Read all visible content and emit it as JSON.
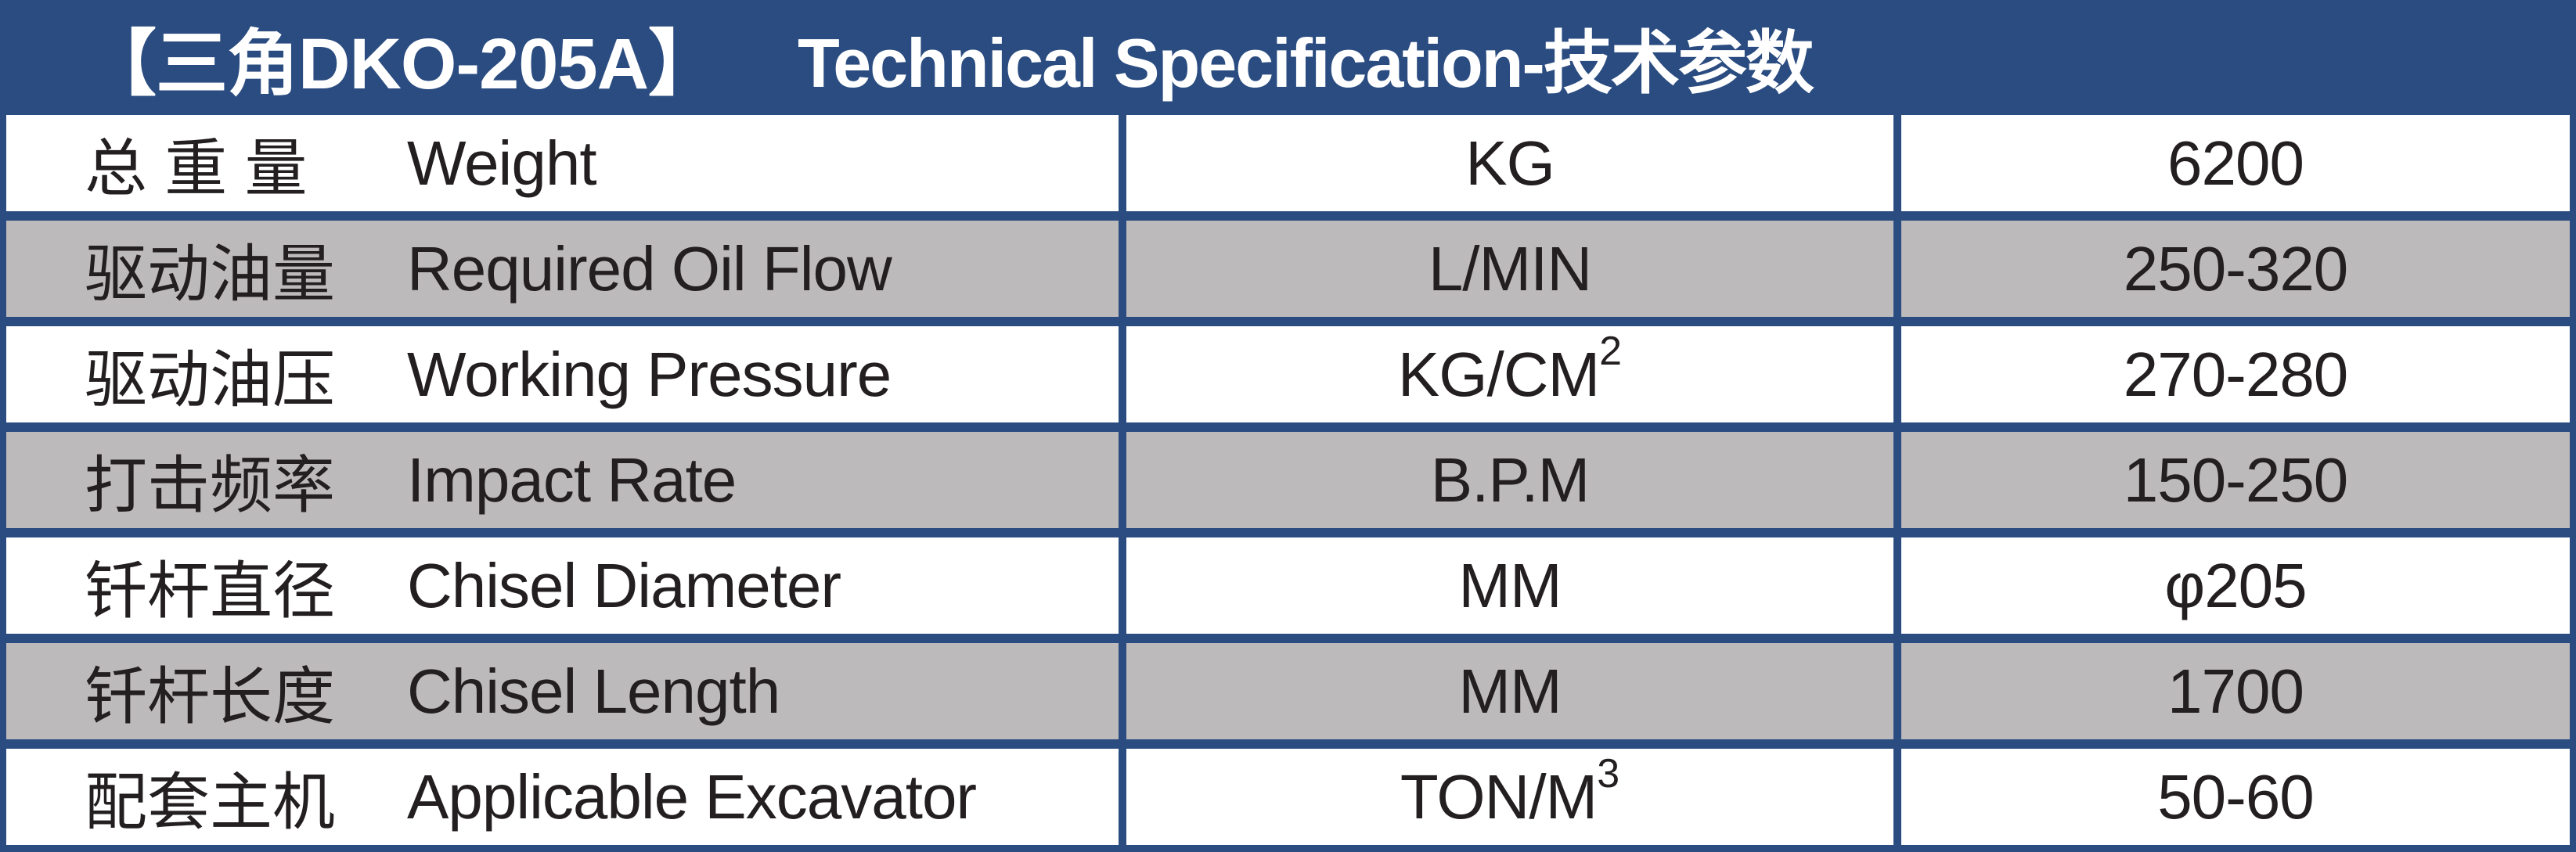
{
  "header": {
    "model": "【三角DKO-205A】",
    "title": "Technical Specification-技术参数"
  },
  "colors": {
    "accent_blue": "#2a4c80",
    "row_alt_gray": "#bcbaba",
    "header_text": "#ffffff",
    "body_text": "#231f20"
  },
  "table": {
    "rows": [
      {
        "cn": "总 重 量",
        "en": "Weight",
        "unit": "KG",
        "unit_sup": "",
        "value": "6200"
      },
      {
        "cn": "驱动油量",
        "en": "Required Oil Flow",
        "unit": "L/MIN",
        "unit_sup": "",
        "value": "250-320"
      },
      {
        "cn": "驱动油压",
        "en": "Working Pressure",
        "unit": "KG/CM",
        "unit_sup": "2",
        "value": "270-280"
      },
      {
        "cn": "打击频率",
        "en": "Impact Rate",
        "unit": "B.P.M",
        "unit_sup": "",
        "value": "150-250"
      },
      {
        "cn": "钎杆直径",
        "en": "Chisel Diameter",
        "unit": "MM",
        "unit_sup": "",
        "value": "φ205"
      },
      {
        "cn": "钎杆长度",
        "en": "Chisel Length",
        "unit": "MM",
        "unit_sup": "",
        "value": "1700"
      },
      {
        "cn": "配套主机",
        "en": "Applicable Excavator",
        "unit": "TON/M",
        "unit_sup": "3",
        "value": "50-60"
      }
    ]
  }
}
